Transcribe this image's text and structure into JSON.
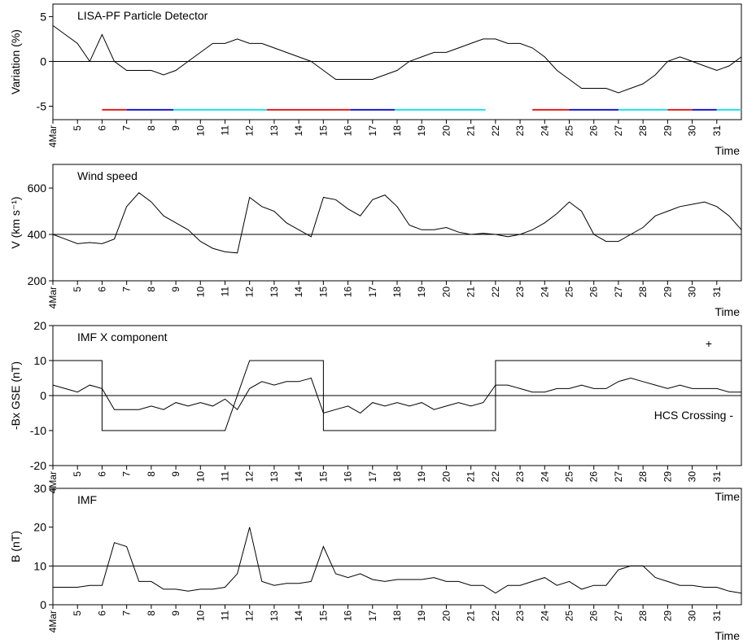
{
  "chart_data": [
    {
      "type": "line",
      "title": "LISA-PF Particle Detector",
      "y_label": "Variation (%)",
      "x_label": "Time",
      "x": [
        4,
        4.5,
        5,
        5.5,
        6,
        6.5,
        7,
        7.5,
        8,
        8.5,
        9,
        9.5,
        10,
        10.5,
        11,
        11.5,
        12,
        12.5,
        13,
        13.5,
        14,
        14.5,
        15,
        15.5,
        16,
        16.5,
        17,
        17.5,
        18,
        18.5,
        19,
        19.5,
        20,
        20.5,
        21,
        21.5,
        22,
        22.5,
        23,
        23.5,
        24,
        24.5,
        25,
        25.5,
        26,
        26.5,
        27,
        27.5,
        28,
        28.5,
        29,
        29.5,
        30,
        30.5,
        31,
        31.5,
        32
      ],
      "series": [
        {
          "color": "#000000",
          "values": [
            4,
            3,
            2,
            0,
            3,
            0,
            -1,
            -1,
            -1,
            -1.5,
            -1,
            0,
            1,
            2,
            2,
            2.5,
            2,
            2,
            1.5,
            1,
            0.5,
            0,
            -1,
            -2,
            -2,
            -2,
            -2,
            -1.5,
            -1,
            0,
            0.5,
            1,
            1,
            1.5,
            2,
            2.5,
            2.5,
            2,
            2,
            1.5,
            0.5,
            -1,
            -2,
            -3,
            -3,
            -3,
            -3.5,
            -3,
            -2.5,
            -1.5,
            0,
            0.5,
            0,
            -0.5,
            -1,
            -0.5,
            0.5
          ]
        }
      ],
      "hline": 0,
      "band_y": -5.4,
      "bands": [
        {
          "start": 6,
          "end": 7,
          "color": "#e02020"
        },
        {
          "start": 7,
          "end": 8.9,
          "color": "#1a1acc"
        },
        {
          "start": 8.9,
          "end": 12.7,
          "color": "#22e0e8"
        },
        {
          "start": 12.7,
          "end": 16.1,
          "color": "#e02020"
        },
        {
          "start": 16.1,
          "end": 17.9,
          "color": "#1a1acc"
        },
        {
          "start": 17.9,
          "end": 21.6,
          "color": "#22e0e8"
        },
        {
          "start": 23.5,
          "end": 25,
          "color": "#e02020"
        },
        {
          "start": 25,
          "end": 27,
          "color": "#1a1acc"
        },
        {
          "start": 27,
          "end": 29,
          "color": "#22e0e8"
        },
        {
          "start": 29,
          "end": 30,
          "color": "#e02020"
        },
        {
          "start": 30,
          "end": 31,
          "color": "#1a1acc"
        },
        {
          "start": 31,
          "end": 32,
          "color": "#22e0e8"
        }
      ],
      "xlim": [
        4,
        32
      ],
      "xticks": [
        {
          "value": 4,
          "label": "4Mar"
        },
        5,
        6,
        7,
        8,
        9,
        10,
        11,
        12,
        13,
        14,
        15,
        16,
        17,
        18,
        19,
        20,
        21,
        22,
        23,
        24,
        25,
        26,
        27,
        28,
        29,
        30,
        31
      ],
      "ylim": [
        -6.5,
        6.4
      ],
      "yticks": [
        -5,
        0,
        5
      ]
    },
    {
      "type": "line",
      "title": "Wind speed",
      "y_label": "V (km s⁻¹)",
      "x_label": "Time",
      "x": [
        4,
        4.5,
        5,
        5.5,
        6,
        6.5,
        7,
        7.5,
        8,
        8.5,
        9,
        9.5,
        10,
        10.5,
        11,
        11.5,
        12,
        12.5,
        13,
        13.5,
        14,
        14.5,
        15,
        15.5,
        16,
        16.5,
        17,
        17.5,
        18,
        18.5,
        19,
        19.5,
        20,
        20.5,
        21,
        21.5,
        22,
        22.5,
        23,
        23.5,
        24,
        24.5,
        25,
        25.5,
        26,
        26.5,
        27,
        27.5,
        28,
        28.5,
        29,
        29.5,
        30,
        30.5,
        31,
        31.5,
        32
      ],
      "series": [
        {
          "color": "#000000",
          "values": [
            400,
            380,
            360,
            365,
            360,
            380,
            520,
            580,
            540,
            480,
            450,
            420,
            370,
            340,
            325,
            320,
            560,
            520,
            500,
            450,
            420,
            390,
            560,
            550,
            510,
            480,
            550,
            570,
            520,
            440,
            420,
            420,
            430,
            410,
            400,
            405,
            400,
            390,
            400,
            420,
            450,
            490,
            540,
            500,
            400,
            370,
            370,
            400,
            430,
            480,
            500,
            520,
            530,
            540,
            520,
            480,
            420
          ]
        }
      ],
      "hline": 400,
      "xlim": [
        4,
        32
      ],
      "xticks": [
        {
          "value": 4,
          "label": "4Mar"
        },
        5,
        6,
        7,
        8,
        9,
        10,
        11,
        12,
        13,
        14,
        15,
        16,
        17,
        18,
        19,
        20,
        21,
        22,
        23,
        24,
        25,
        26,
        27,
        28,
        29,
        30,
        31
      ],
      "ylim": [
        200,
        702
      ],
      "yticks": [
        200,
        400,
        600
      ]
    },
    {
      "type": "line",
      "title": "IMF X component",
      "y_label": "-Bx GSE (nT)",
      "x_label": "Time",
      "annotations": [
        "+",
        "HCS Crossing -"
      ],
      "x": [
        4,
        4.5,
        5,
        5.5,
        6,
        6.5,
        7,
        7.5,
        8,
        8.5,
        9,
        9.5,
        10,
        10.5,
        11,
        11.5,
        12,
        12.5,
        13,
        13.5,
        14,
        14.5,
        15,
        15.5,
        16,
        16.5,
        17,
        17.5,
        18,
        18.5,
        19,
        19.5,
        20,
        20.5,
        21,
        21.5,
        22,
        22.5,
        23,
        23.5,
        24,
        24.5,
        25,
        25.5,
        26,
        26.5,
        27,
        27.5,
        28,
        28.5,
        29,
        29.5,
        30,
        30.5,
        31,
        31.5,
        32
      ],
      "series": [
        {
          "color": "#000000",
          "values": [
            3,
            2,
            1,
            3,
            2,
            -4,
            -4,
            -4,
            -3,
            -4,
            -2,
            -3,
            -2,
            -3,
            -1,
            -4,
            2,
            4,
            3,
            4,
            4,
            5,
            -5,
            -4,
            -3,
            -5,
            -2,
            -3,
            -2,
            -3,
            -2,
            -4,
            -3,
            -2,
            -3,
            -2,
            3,
            3,
            2,
            1,
            1,
            2,
            2,
            3,
            2,
            2,
            4,
            5,
            4,
            3,
            2,
            3,
            2,
            2,
            2,
            1,
            1
          ]
        },
        {
          "color": "#000000",
          "x": [
            4,
            6,
            6,
            11,
            12,
            15,
            15,
            22,
            22,
            32
          ],
          "values": [
            10,
            10,
            -10,
            -10,
            10,
            10,
            -10,
            -10,
            10,
            10
          ]
        }
      ],
      "hline": 0,
      "xlim": [
        4,
        32
      ],
      "xticks": [
        {
          "value": 4,
          "label": "4Mar"
        },
        5,
        6,
        7,
        8,
        9,
        10,
        11,
        12,
        13,
        14,
        15,
        16,
        17,
        18,
        19,
        20,
        21,
        22,
        23,
        24,
        25,
        26,
        27,
        28,
        29,
        30,
        31
      ],
      "ylim": [
        -20,
        20
      ],
      "yticks": [
        -20,
        -10,
        0,
        10,
        20
      ]
    },
    {
      "type": "line",
      "title": "IMF",
      "y_label": "B (nT)",
      "x_label": "Time",
      "x": [
        4,
        4.5,
        5,
        5.5,
        6,
        6.5,
        7,
        7.5,
        8,
        8.5,
        9,
        9.5,
        10,
        10.5,
        11,
        11.5,
        12,
        12.5,
        13,
        13.5,
        14,
        14.5,
        15,
        15.5,
        16,
        16.5,
        17,
        17.5,
        18,
        18.5,
        19,
        19.5,
        20,
        20.5,
        21,
        21.5,
        22,
        22.5,
        23,
        23.5,
        24,
        24.5,
        25,
        25.5,
        26,
        26.5,
        27,
        27.5,
        28,
        28.5,
        29,
        29.5,
        30,
        30.5,
        31,
        31.5,
        32
      ],
      "series": [
        {
          "color": "#000000",
          "values": [
            4.5,
            4.5,
            4.5,
            5,
            5,
            16,
            15,
            6,
            6,
            4,
            4,
            3.5,
            4,
            4,
            4.5,
            8,
            20,
            6,
            5,
            5.5,
            5.5,
            6,
            15,
            8,
            7,
            8,
            6.5,
            6,
            6.5,
            6.5,
            6.5,
            7,
            6,
            6,
            5,
            5,
            3,
            5,
            5,
            6,
            7,
            5,
            6,
            4,
            5,
            5,
            9,
            10,
            10,
            7,
            6,
            5,
            5,
            4.5,
            4.5,
            3.5,
            3
          ]
        }
      ],
      "hline": 10,
      "xlim": [
        4,
        32
      ],
      "xticks": [
        {
          "value": 4,
          "label": "4Mar"
        },
        5,
        6,
        7,
        8,
        9,
        10,
        11,
        12,
        13,
        14,
        15,
        16,
        17,
        18,
        19,
        20,
        21,
        22,
        23,
        24,
        25,
        26,
        27,
        28,
        29,
        30,
        31
      ],
      "ylim": [
        0,
        30
      ],
      "yticks": [
        0,
        10,
        20,
        30
      ]
    }
  ]
}
